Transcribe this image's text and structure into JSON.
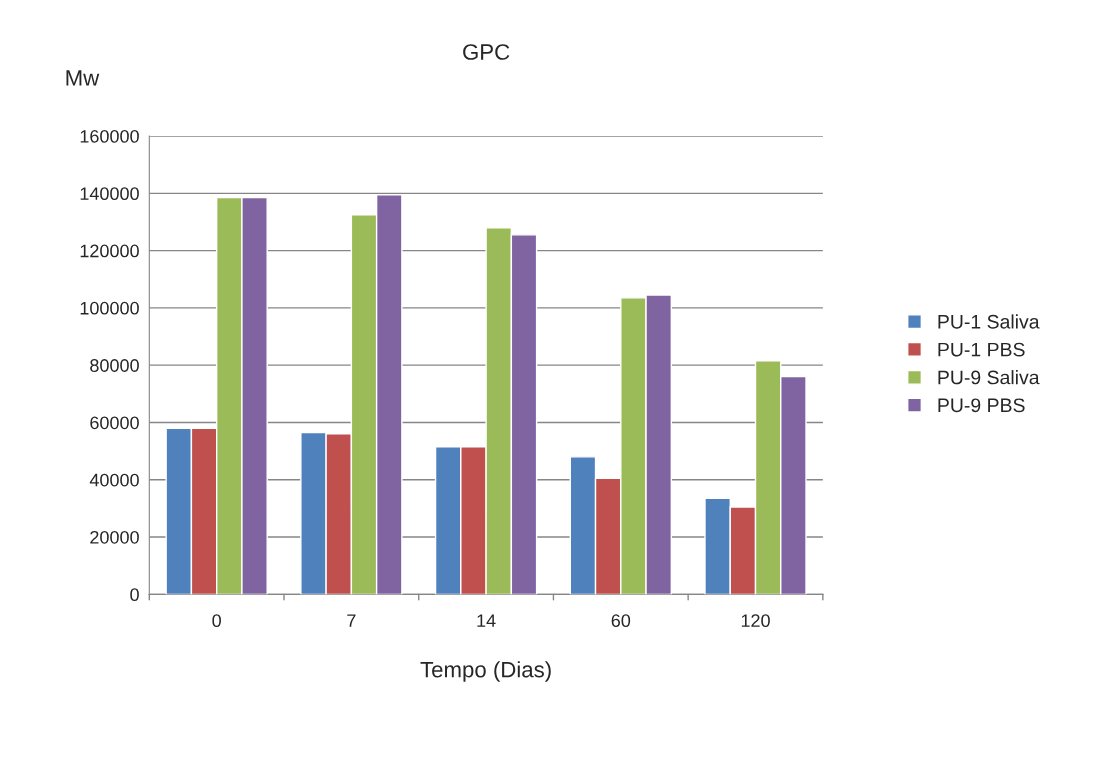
{
  "chart_data": {
    "type": "bar",
    "title": "GPC",
    "xlabel": "Tempo (Dias)",
    "ylabel": "Mw",
    "categories": [
      "0",
      "7",
      "14",
      "60",
      "120"
    ],
    "series": [
      {
        "name": "PU-1 Saliva",
        "color": "#4f81bd",
        "values": [
          58000,
          56500,
          51500,
          48000,
          33500
        ]
      },
      {
        "name": "PU-1 PBS",
        "color": "#c0504d",
        "values": [
          58000,
          56000,
          51500,
          40500,
          30500
        ]
      },
      {
        "name": "PU-9 Saliva",
        "color": "#9bbb59",
        "values": [
          138500,
          132500,
          128000,
          103500,
          81500
        ]
      },
      {
        "name": "PU-9 PBS",
        "color": "#8064a2",
        "values": [
          138500,
          139500,
          125500,
          104500,
          76000
        ]
      }
    ],
    "ylim": [
      0,
      160000
    ],
    "yticks": [
      0,
      20000,
      40000,
      60000,
      80000,
      100000,
      120000,
      140000,
      160000
    ],
    "grid": "y",
    "legend": "right"
  }
}
